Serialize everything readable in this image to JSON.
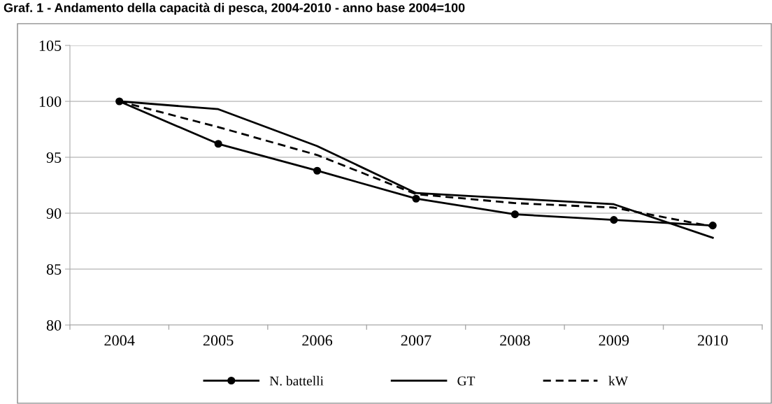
{
  "chart_data": {
    "type": "line",
    "title": "Graf. 1 - Andamento della capacità di pesca, 2004-2010 - anno base 2004=100",
    "categories": [
      "2004",
      "2005",
      "2006",
      "2007",
      "2008",
      "2009",
      "2010"
    ],
    "series": [
      {
        "name": "N. battelli",
        "color": "#000000",
        "marker": "circle",
        "line_style": "solid",
        "values": [
          100,
          96.2,
          93.8,
          91.3,
          89.9,
          89.4,
          88.9
        ]
      },
      {
        "name": "GT",
        "color": "#000000",
        "marker": "none",
        "line_style": "solid",
        "values": [
          100,
          99.3,
          96.0,
          91.8,
          91.3,
          90.8,
          87.8
        ]
      },
      {
        "name": "kW",
        "color": "#000000",
        "marker": "none",
        "line_style": "dashed",
        "values": [
          100,
          97.7,
          95.2,
          91.7,
          90.9,
          90.5,
          88.8
        ]
      }
    ],
    "ylim": [
      80,
      105
    ],
    "yticks": [
      80,
      85,
      90,
      95,
      100,
      105
    ],
    "grid": "y",
    "legend": "bottom"
  }
}
